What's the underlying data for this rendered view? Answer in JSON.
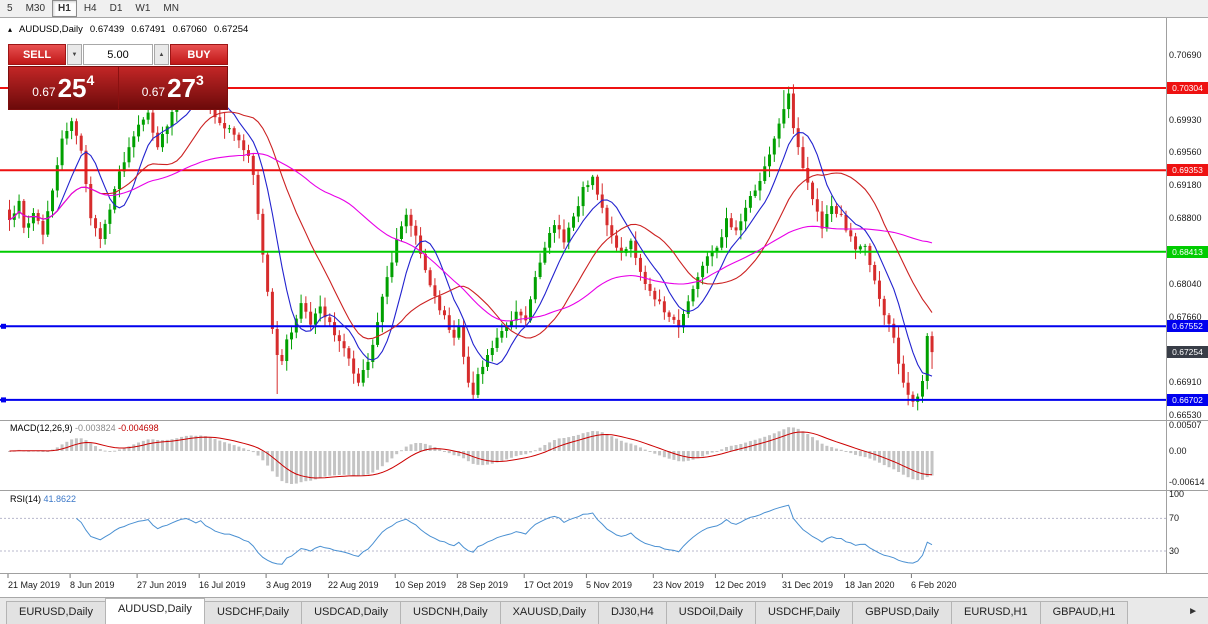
{
  "toolbar": {
    "timeframes": [
      {
        "label": "5",
        "active": false
      },
      {
        "label": "M30",
        "active": false
      },
      {
        "label": "H1",
        "active": true
      },
      {
        "label": "H4",
        "active": false
      },
      {
        "label": "D1",
        "active": false
      },
      {
        "label": "W1",
        "active": false
      },
      {
        "label": "MN",
        "active": false
      }
    ]
  },
  "symbol_info": {
    "collapse_icon": "▴",
    "symbol": "AUDUSD,Daily",
    "open": "0.67439",
    "high": "0.67491",
    "low": "0.67060",
    "close": "0.67254"
  },
  "trade_panel": {
    "sell_label": "SELL",
    "buy_label": "BUY",
    "volume": "5.00",
    "spin_down_icon": "▼",
    "spin_up_icon": "▲",
    "sell_price": {
      "prefix": "0.67",
      "big": "25",
      "sup": "4"
    },
    "buy_price": {
      "prefix": "0.67",
      "big": "27",
      "sup": "3"
    }
  },
  "price_axis": {
    "labels": [
      {
        "label": "0.70690",
        "value": 0.7069
      },
      {
        "label": "0.69930",
        "value": 0.6993
      },
      {
        "label": "0.69560",
        "value": 0.6956
      },
      {
        "label": "0.69180",
        "value": 0.6918
      },
      {
        "label": "0.68800",
        "value": 0.688
      },
      {
        "label": "0.68040",
        "value": 0.6804
      },
      {
        "label": "0.67660",
        "value": 0.6766
      },
      {
        "label": "0.66910",
        "value": 0.6691
      },
      {
        "label": "0.66530",
        "value": 0.6653
      }
    ]
  },
  "hlines": [
    {
      "value": 0.70304,
      "label": "0.70304",
      "color": "#ee1111",
      "marker": false
    },
    {
      "value": 0.69353,
      "label": "0.69353",
      "color": "#ee1111",
      "marker": false
    },
    {
      "value": 0.68413,
      "label": "0.68413",
      "color": "#00cc00",
      "marker": false
    },
    {
      "value": 0.67552,
      "label": "0.67552",
      "color": "#0000ee",
      "marker": true
    },
    {
      "value": 0.66702,
      "label": "0.66702",
      "color": "#0000ee",
      "marker": true
    }
  ],
  "current_price": {
    "value": 0.67254,
    "label": "0.67254",
    "bg": "#383d47"
  },
  "macd_axis": [
    {
      "label": "0.00507",
      "value": 0.00507
    },
    {
      "label": "0.00",
      "value": 0
    },
    {
      "label": "-0.00614",
      "value": -0.00614
    }
  ],
  "rsi_axis": [
    {
      "label": "100",
      "value": 100
    },
    {
      "label": "70",
      "value": 70
    },
    {
      "label": "30",
      "value": 30
    }
  ],
  "indicators": {
    "macd": {
      "name": "MACD(12,26,9)",
      "value_main": "-0.003824",
      "value_signal": "-0.004698"
    },
    "rsi": {
      "name": "RSI(14)",
      "value": "41.8622"
    }
  },
  "tabs": [
    {
      "label": "EURUSD,Daily",
      "active": false
    },
    {
      "label": "AUDUSD,Daily",
      "active": true
    },
    {
      "label": "USDCHF,Daily",
      "active": false
    },
    {
      "label": "USDCAD,Daily",
      "active": false
    },
    {
      "label": "USDCNH,Daily",
      "active": false
    },
    {
      "label": "XAUUSD,Daily",
      "active": false
    },
    {
      "label": "DJ30,H4",
      "active": false
    },
    {
      "label": "USDOil,Daily",
      "active": false
    },
    {
      "label": "USDCHF,Daily",
      "active": false
    },
    {
      "label": "GBPUSD,Daily",
      "active": false
    },
    {
      "label": "EURUSD,H1",
      "active": false
    },
    {
      "label": "GBPAUD,H1",
      "active": false
    }
  ],
  "tabs_nav": {
    "right": "►"
  },
  "chart_data": {
    "type": "candlestick",
    "symbol": "AUDUSD",
    "timeframe": "Daily",
    "candle_count": 194,
    "last_candle": {
      "o": 0.67439,
      "h": 0.67491,
      "l": 0.6706,
      "c": 0.67254
    },
    "price_axis_range": {
      "top": 0.70997,
      "bottom": 0.66493
    },
    "colors": {
      "up": "#00a000",
      "down": "#d62c2c"
    },
    "moving_averages": [
      {
        "period": 8,
        "color": "#2323cf"
      },
      {
        "period": 20,
        "color": "#cc2222"
      },
      {
        "period": 50,
        "color": "#e800e8"
      }
    ],
    "indicators": {
      "macd": {
        "fast": 12,
        "slow": 26,
        "signal": 9,
        "value_main": -0.003824,
        "value_signal": -0.004698
      },
      "rsi": {
        "period": 14,
        "value": 41.8622,
        "levels": [
          70,
          30
        ]
      }
    },
    "price_anchors": [
      [
        0,
        0.6878
      ],
      [
        2,
        0.69
      ],
      [
        3,
        0.6869
      ],
      [
        5,
        0.6886
      ],
      [
        7,
        0.6861
      ],
      [
        9,
        0.6912
      ],
      [
        11,
        0.6972
      ],
      [
        13,
        0.6992
      ],
      [
        15,
        0.6958
      ],
      [
        17,
        0.688
      ],
      [
        19,
        0.6856
      ],
      [
        21,
        0.689
      ],
      [
        23,
        0.6934
      ],
      [
        25,
        0.6962
      ],
      [
        27,
        0.6988
      ],
      [
        29,
        0.7002
      ],
      [
        31,
        0.6962
      ],
      [
        33,
        0.6986
      ],
      [
        35,
        0.7018
      ],
      [
        37,
        0.7038
      ],
      [
        39,
        0.7022
      ],
      [
        40,
        0.7038
      ],
      [
        42,
        0.701
      ],
      [
        44,
        0.699
      ],
      [
        46,
        0.6984
      ],
      [
        48,
        0.697
      ],
      [
        50,
        0.6952
      ],
      [
        51,
        0.693
      ],
      [
        52,
        0.6885
      ],
      [
        53,
        0.6838
      ],
      [
        54,
        0.6795
      ],
      [
        55,
        0.6752
      ],
      [
        56,
        0.6722
      ],
      [
        57,
        0.6715
      ],
      [
        58,
        0.674
      ],
      [
        59,
        0.6748
      ],
      [
        61,
        0.6782
      ],
      [
        63,
        0.6757
      ],
      [
        65,
        0.6778
      ],
      [
        67,
        0.676
      ],
      [
        69,
        0.6738
      ],
      [
        71,
        0.6718
      ],
      [
        73,
        0.669
      ],
      [
        75,
        0.6714
      ],
      [
        77,
        0.676
      ],
      [
        79,
        0.6812
      ],
      [
        81,
        0.6856
      ],
      [
        83,
        0.6884
      ],
      [
        85,
        0.686
      ],
      [
        87,
        0.682
      ],
      [
        89,
        0.679
      ],
      [
        91,
        0.6768
      ],
      [
        93,
        0.6742
      ],
      [
        94,
        0.6756
      ],
      [
        95,
        0.672
      ],
      [
        96,
        0.669
      ],
      [
        97,
        0.6676
      ],
      [
        98,
        0.67
      ],
      [
        100,
        0.6722
      ],
      [
        102,
        0.6742
      ],
      [
        104,
        0.6756
      ],
      [
        106,
        0.6772
      ],
      [
        108,
        0.6762
      ],
      [
        110,
        0.6812
      ],
      [
        112,
        0.6846
      ],
      [
        114,
        0.6872
      ],
      [
        116,
        0.6852
      ],
      [
        118,
        0.6882
      ],
      [
        120,
        0.6916
      ],
      [
        122,
        0.6928
      ],
      [
        124,
        0.6892
      ],
      [
        126,
        0.686
      ],
      [
        128,
        0.684
      ],
      [
        130,
        0.6854
      ],
      [
        132,
        0.6818
      ],
      [
        134,
        0.6796
      ],
      [
        136,
        0.6784
      ],
      [
        138,
        0.6766
      ],
      [
        140,
        0.6754
      ],
      [
        142,
        0.6784
      ],
      [
        144,
        0.6812
      ],
      [
        146,
        0.6836
      ],
      [
        148,
        0.6846
      ],
      [
        150,
        0.688
      ],
      [
        152,
        0.6866
      ],
      [
        154,
        0.6892
      ],
      [
        156,
        0.6912
      ],
      [
        158,
        0.694
      ],
      [
        160,
        0.6972
      ],
      [
        162,
        0.7006
      ],
      [
        163,
        0.7024
      ],
      [
        164,
        0.6984
      ],
      [
        166,
        0.6938
      ],
      [
        168,
        0.6902
      ],
      [
        170,
        0.6868
      ],
      [
        172,
        0.6894
      ],
      [
        174,
        0.6884
      ],
      [
        175,
        0.6866
      ],
      [
        177,
        0.6844
      ],
      [
        179,
        0.6848
      ],
      [
        181,
        0.6808
      ],
      [
        183,
        0.6768
      ],
      [
        185,
        0.6742
      ],
      [
        186,
        0.6712
      ],
      [
        187,
        0.669
      ],
      [
        188,
        0.6676
      ],
      [
        189,
        0.6668
      ],
      [
        190,
        0.6674
      ],
      [
        191,
        0.6692
      ],
      [
        192,
        0.6744
      ],
      [
        193,
        0.67254
      ]
    ],
    "wick_overrides": {
      "13": {
        "high": 0.6996
      },
      "37": {
        "high": 0.7042
      },
      "40": {
        "high": 0.7044
      },
      "56": {
        "low": 0.6677
      },
      "73": {
        "low": 0.6686
      },
      "97": {
        "low": 0.667
      },
      "122": {
        "high": 0.693
      },
      "162": {
        "high": 0.7028
      },
      "163": {
        "high": 0.7032
      },
      "189": {
        "low": 0.6662
      }
    },
    "x_ticks": [
      {
        "label": "21 May 2019",
        "index": 0
      },
      {
        "label": "8 Jun 2019",
        "index": 13
      },
      {
        "label": "27 Jun 2019",
        "index": 27
      },
      {
        "label": "16 Jul 2019",
        "index": 40
      },
      {
        "label": "3 Aug 2019",
        "index": 54
      },
      {
        "label": "22 Aug 2019",
        "index": 67
      },
      {
        "label": "10 Sep 2019",
        "index": 81
      },
      {
        "label": "28 Sep 2019",
        "index": 94
      },
      {
        "label": "17 Oct 2019",
        "index": 108
      },
      {
        "label": "5 Nov 2019",
        "index": 121
      },
      {
        "label": "23 Nov 2019",
        "index": 135
      },
      {
        "label": "12 Dec 2019",
        "index": 148
      },
      {
        "label": "31 Dec 2019",
        "index": 162
      },
      {
        "label": "18 Jan 2020",
        "index": 175
      },
      {
        "label": "6 Feb 2020",
        "index": 189
      }
    ]
  }
}
